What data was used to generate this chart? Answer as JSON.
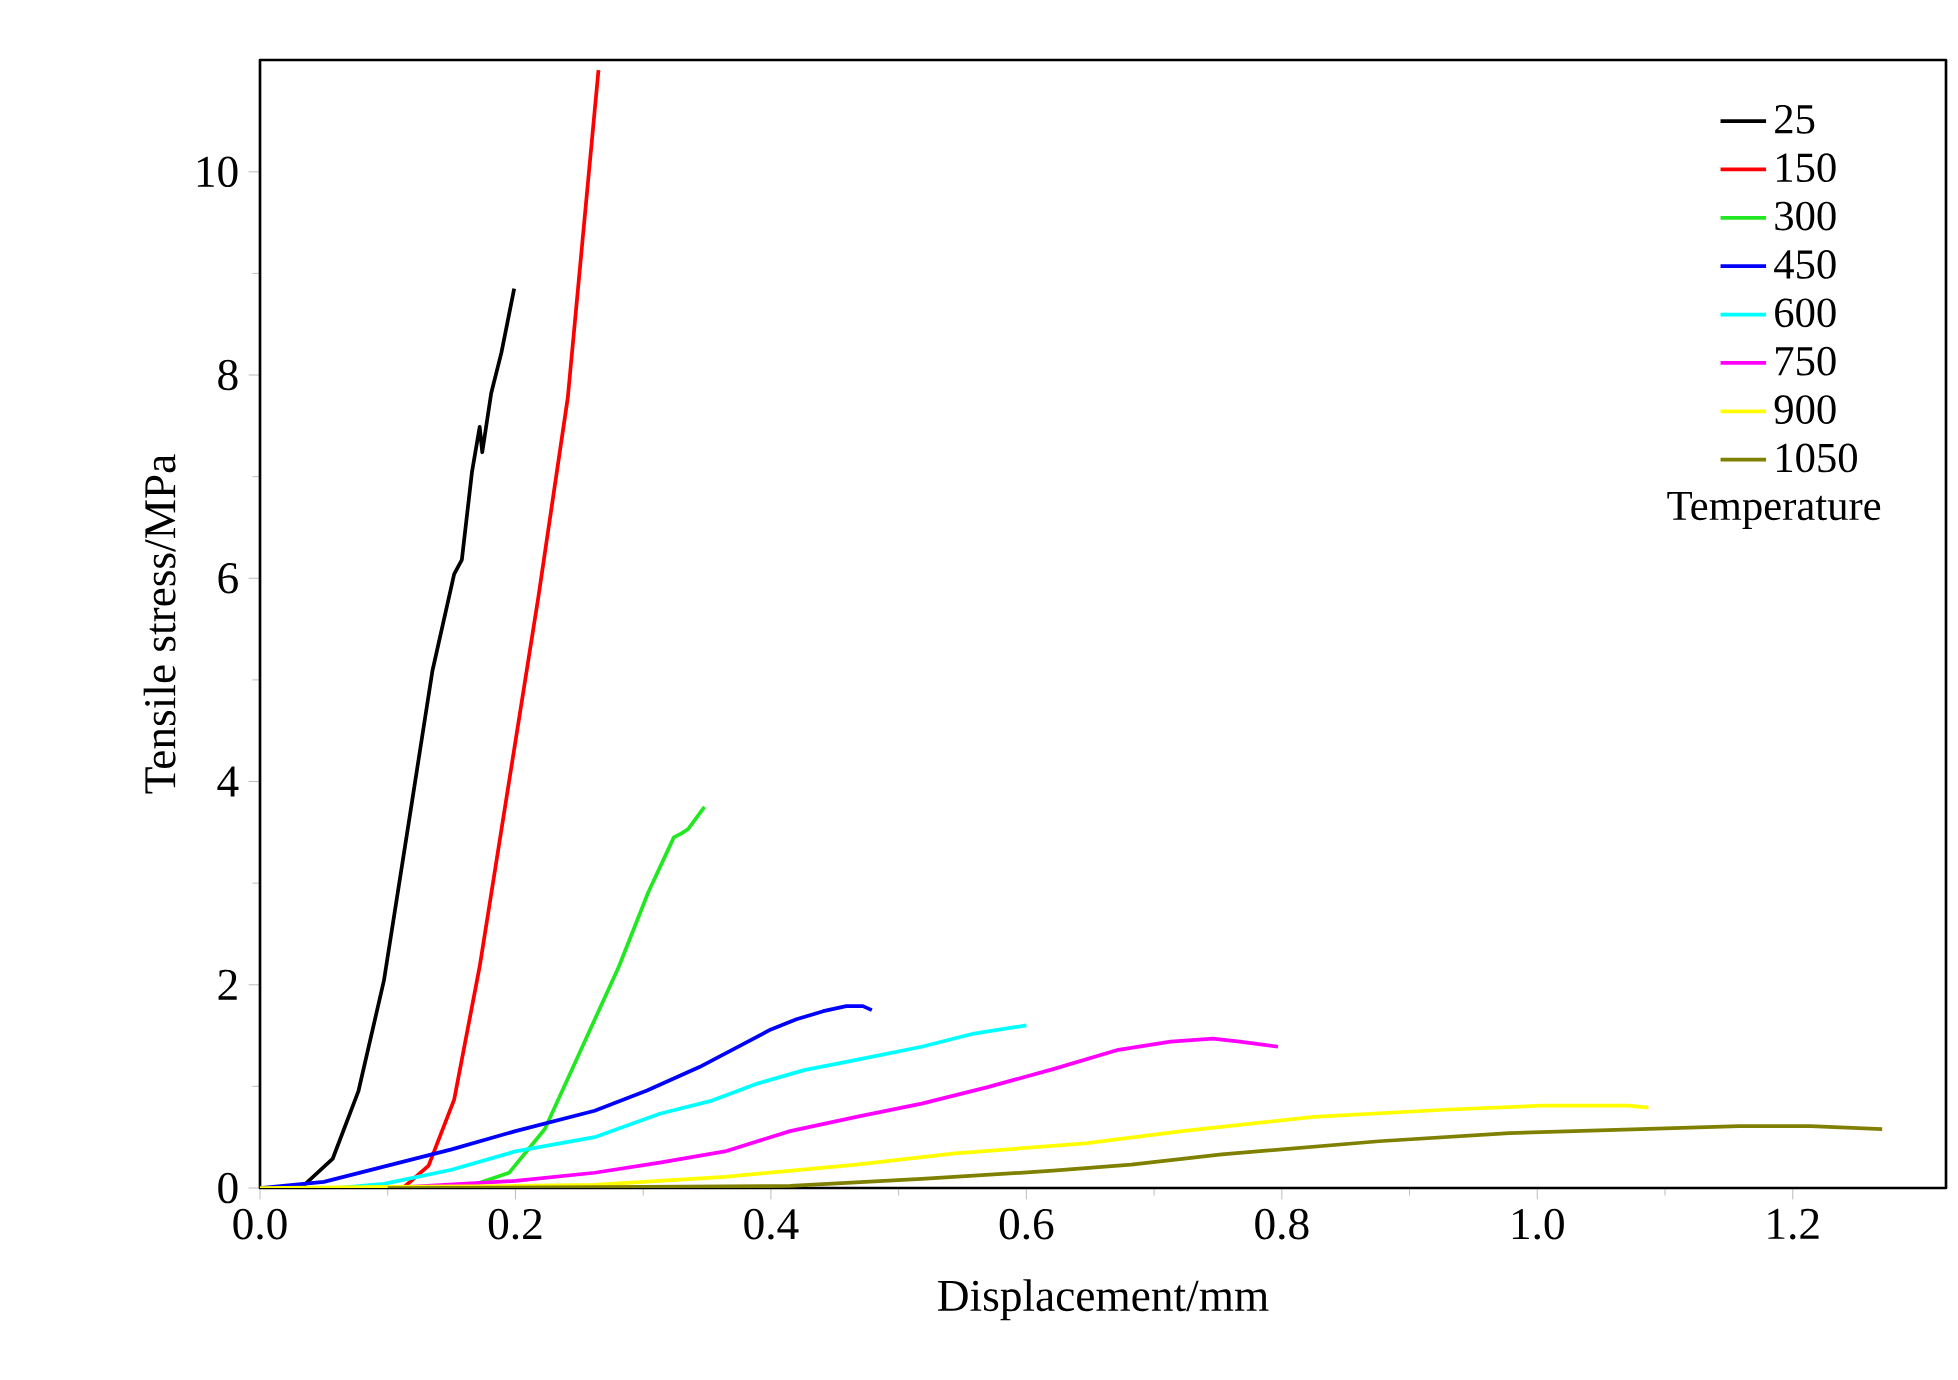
{
  "chart_data": {
    "type": "line",
    "xlabel": "Displacement/mm",
    "ylabel": "Tensile stress/MPa",
    "legend_title": "Temperature",
    "legend": "top right",
    "grid": false,
    "xlim": [
      0,
      1.32
    ],
    "ylim": [
      0,
      11.1
    ],
    "xticks": [
      {
        "value": 0,
        "label": "0.0"
      },
      {
        "value": 0.2,
        "label": "0.2"
      },
      {
        "value": 0.4,
        "label": "0.4"
      },
      {
        "value": 0.6,
        "label": "0.6"
      },
      {
        "value": 0.8,
        "label": "0.8"
      },
      {
        "value": 1.0,
        "label": "1.0"
      },
      {
        "value": 1.2,
        "label": "1.2"
      }
    ],
    "yticks": [
      0,
      2,
      4,
      6,
      8,
      10
    ],
    "series": [
      {
        "name": "25",
        "color": "#000000",
        "x": [
          0.032,
          0.057,
          0.077,
          0.097,
          0.117,
          0.135,
          0.152,
          0.158,
          0.166,
          0.172,
          0.174,
          0.181,
          0.189,
          0.199
        ],
        "values": [
          0,
          0.29,
          0.95,
          2.04,
          3.64,
          5.09,
          6.04,
          6.18,
          7.05,
          7.49,
          7.24,
          7.82,
          8.22,
          8.85
        ]
      },
      {
        "name": "150",
        "color": "#ff0000",
        "x": [
          0.112,
          0.132,
          0.152,
          0.172,
          0.195,
          0.218,
          0.241,
          0.265
        ],
        "values": [
          0,
          0.22,
          0.87,
          2.18,
          4.0,
          5.82,
          7.78,
          11.0
        ]
      },
      {
        "name": "300",
        "color": "#22e822",
        "x": [
          0.16,
          0.195,
          0.223,
          0.252,
          0.281,
          0.304,
          0.324,
          0.33,
          0.335,
          0.348
        ],
        "values": [
          0,
          0.15,
          0.58,
          1.38,
          2.18,
          2.91,
          3.45,
          3.49,
          3.53,
          3.75
        ]
      },
      {
        "name": "450",
        "color": "#0000ff",
        "x": [
          0,
          0.05,
          0.1,
          0.15,
          0.2,
          0.262,
          0.303,
          0.344,
          0.379,
          0.4,
          0.42,
          0.441,
          0.459,
          0.472,
          0.479
        ],
        "values": [
          0,
          0.06,
          0.22,
          0.38,
          0.56,
          0.76,
          0.96,
          1.19,
          1.42,
          1.56,
          1.66,
          1.74,
          1.79,
          1.79,
          1.75
        ]
      },
      {
        "name": "600",
        "color": "#00ffff",
        "x": [
          0.06,
          0.097,
          0.15,
          0.2,
          0.262,
          0.313,
          0.354,
          0.39,
          0.426,
          0.467,
          0.518,
          0.559,
          0.6
        ],
        "values": [
          0,
          0.04,
          0.18,
          0.36,
          0.5,
          0.73,
          0.86,
          1.03,
          1.16,
          1.26,
          1.39,
          1.52,
          1.6
        ]
      },
      {
        "name": "750",
        "color": "#ff00ff",
        "x": [
          0.1,
          0.2,
          0.262,
          0.313,
          0.364,
          0.415,
          0.467,
          0.518,
          0.569,
          0.621,
          0.672,
          0.713,
          0.746,
          0.767,
          0.797
        ],
        "values": [
          0,
          0.07,
          0.15,
          0.25,
          0.36,
          0.56,
          0.7,
          0.83,
          0.99,
          1.17,
          1.36,
          1.44,
          1.47,
          1.44,
          1.39
        ]
      },
      {
        "name": "900",
        "color": "#ffff00",
        "x": [
          0,
          0.1,
          0.2,
          0.262,
          0.364,
          0.467,
          0.544,
          0.646,
          0.722,
          0.825,
          0.927,
          1.004,
          1.071,
          1.087
        ],
        "values": [
          0,
          0.01,
          0.02,
          0.03,
          0.11,
          0.23,
          0.34,
          0.44,
          0.56,
          0.7,
          0.77,
          0.81,
          0.81,
          0.79
        ]
      },
      {
        "name": "1050",
        "color": "#808000",
        "x": [
          0.1,
          0.3,
          0.415,
          0.518,
          0.621,
          0.682,
          0.753,
          0.876,
          0.978,
          1.081,
          1.158,
          1.214,
          1.27
        ],
        "values": [
          0,
          0.01,
          0.02,
          0.09,
          0.17,
          0.23,
          0.33,
          0.46,
          0.54,
          0.58,
          0.61,
          0.61,
          0.58
        ]
      }
    ]
  }
}
